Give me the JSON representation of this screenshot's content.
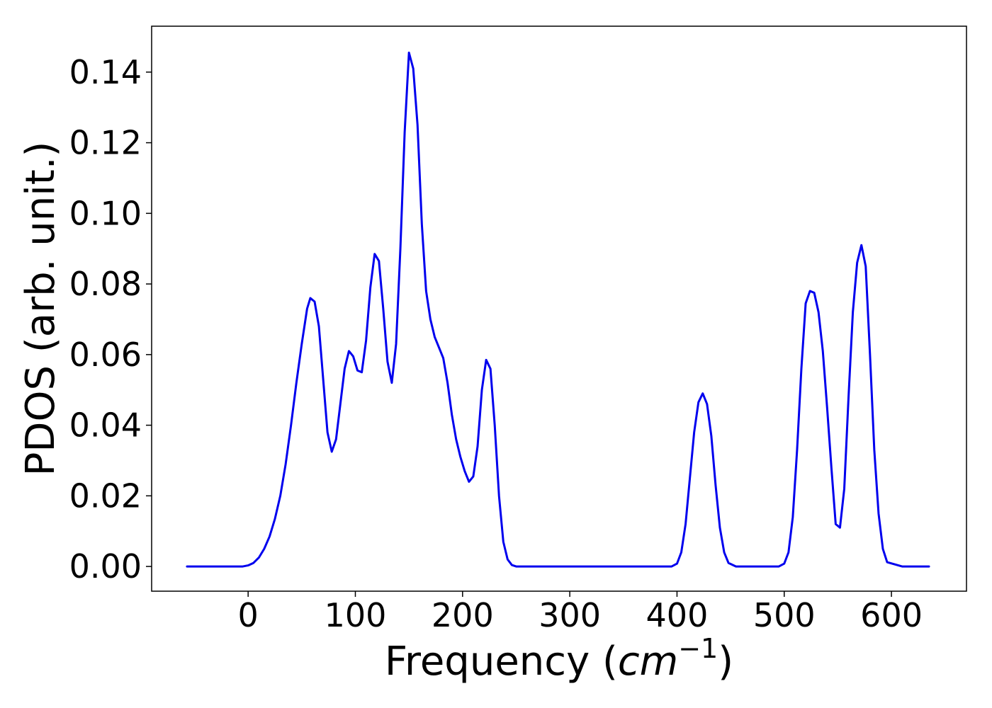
{
  "chart_data": {
    "type": "line",
    "title": "",
    "xlabel": "Frequency (",
    "xlabel_math": "cm",
    "xlabel_sup": "−1",
    "xlabel_close": ")",
    "ylabel": "PDOS (arb. unit.)",
    "xlim": [
      -90,
      670
    ],
    "ylim": [
      -0.007,
      0.153
    ],
    "xticks": [
      0,
      100,
      200,
      300,
      400,
      500,
      600
    ],
    "xtick_labels": [
      "0",
      "100",
      "200",
      "300",
      "400",
      "500",
      "600"
    ],
    "yticks": [
      0.0,
      0.02,
      0.04,
      0.06,
      0.08,
      0.1,
      0.12,
      0.14
    ],
    "ytick_labels": [
      "0.00",
      "0.02",
      "0.04",
      "0.06",
      "0.08",
      "0.10",
      "0.12",
      "0.14"
    ],
    "grid": false,
    "legend": "none",
    "line_color": "#0000ee",
    "series": [
      {
        "x": [
          -57,
          -40,
          -20,
          -5,
          0,
          5,
          10,
          15,
          20,
          25,
          30,
          35,
          40,
          45,
          50,
          55,
          58,
          62,
          66,
          70,
          74,
          78,
          82,
          86,
          90,
          94,
          98,
          102,
          106,
          110,
          114,
          118,
          122,
          126,
          130,
          134,
          138,
          142,
          146,
          150,
          154,
          158,
          162,
          166,
          170,
          174,
          178,
          182,
          186,
          190,
          194,
          198,
          202,
          206,
          210,
          214,
          218,
          222,
          226,
          230,
          234,
          238,
          242,
          246,
          250,
          260,
          300,
          350,
          395,
          400,
          404,
          408,
          412,
          416,
          420,
          424,
          428,
          432,
          436,
          440,
          444,
          448,
          455,
          470,
          495,
          500,
          504,
          508,
          512,
          516,
          520,
          524,
          528,
          532,
          536,
          540,
          544,
          548,
          552,
          556,
          560,
          564,
          568,
          572,
          576,
          580,
          584,
          588,
          592,
          596,
          610,
          635
        ],
        "y": [
          0.0,
          0.0,
          0.0,
          0.0,
          0.0003,
          0.001,
          0.0025,
          0.005,
          0.0085,
          0.0135,
          0.02,
          0.029,
          0.04,
          0.052,
          0.063,
          0.073,
          0.076,
          0.075,
          0.068,
          0.053,
          0.038,
          0.0325,
          0.036,
          0.046,
          0.056,
          0.061,
          0.0595,
          0.0555,
          0.055,
          0.064,
          0.079,
          0.0885,
          0.0865,
          0.073,
          0.058,
          0.052,
          0.063,
          0.09,
          0.123,
          0.1455,
          0.141,
          0.125,
          0.097,
          0.078,
          0.07,
          0.065,
          0.062,
          0.059,
          0.052,
          0.043,
          0.036,
          0.031,
          0.027,
          0.024,
          0.0255,
          0.034,
          0.05,
          0.0585,
          0.056,
          0.04,
          0.02,
          0.007,
          0.002,
          0.0004,
          0.0,
          0.0,
          0.0,
          0.0,
          0.0,
          0.0008,
          0.004,
          0.012,
          0.025,
          0.038,
          0.0465,
          0.049,
          0.046,
          0.037,
          0.023,
          0.011,
          0.004,
          0.001,
          0.0,
          0.0,
          0.0,
          0.0008,
          0.004,
          0.014,
          0.033,
          0.056,
          0.0745,
          0.078,
          0.0775,
          0.072,
          0.061,
          0.045,
          0.028,
          0.012,
          0.011,
          0.022,
          0.048,
          0.072,
          0.086,
          0.091,
          0.085,
          0.06,
          0.033,
          0.015,
          0.005,
          0.0012,
          0.0,
          0.0
        ]
      }
    ]
  }
}
